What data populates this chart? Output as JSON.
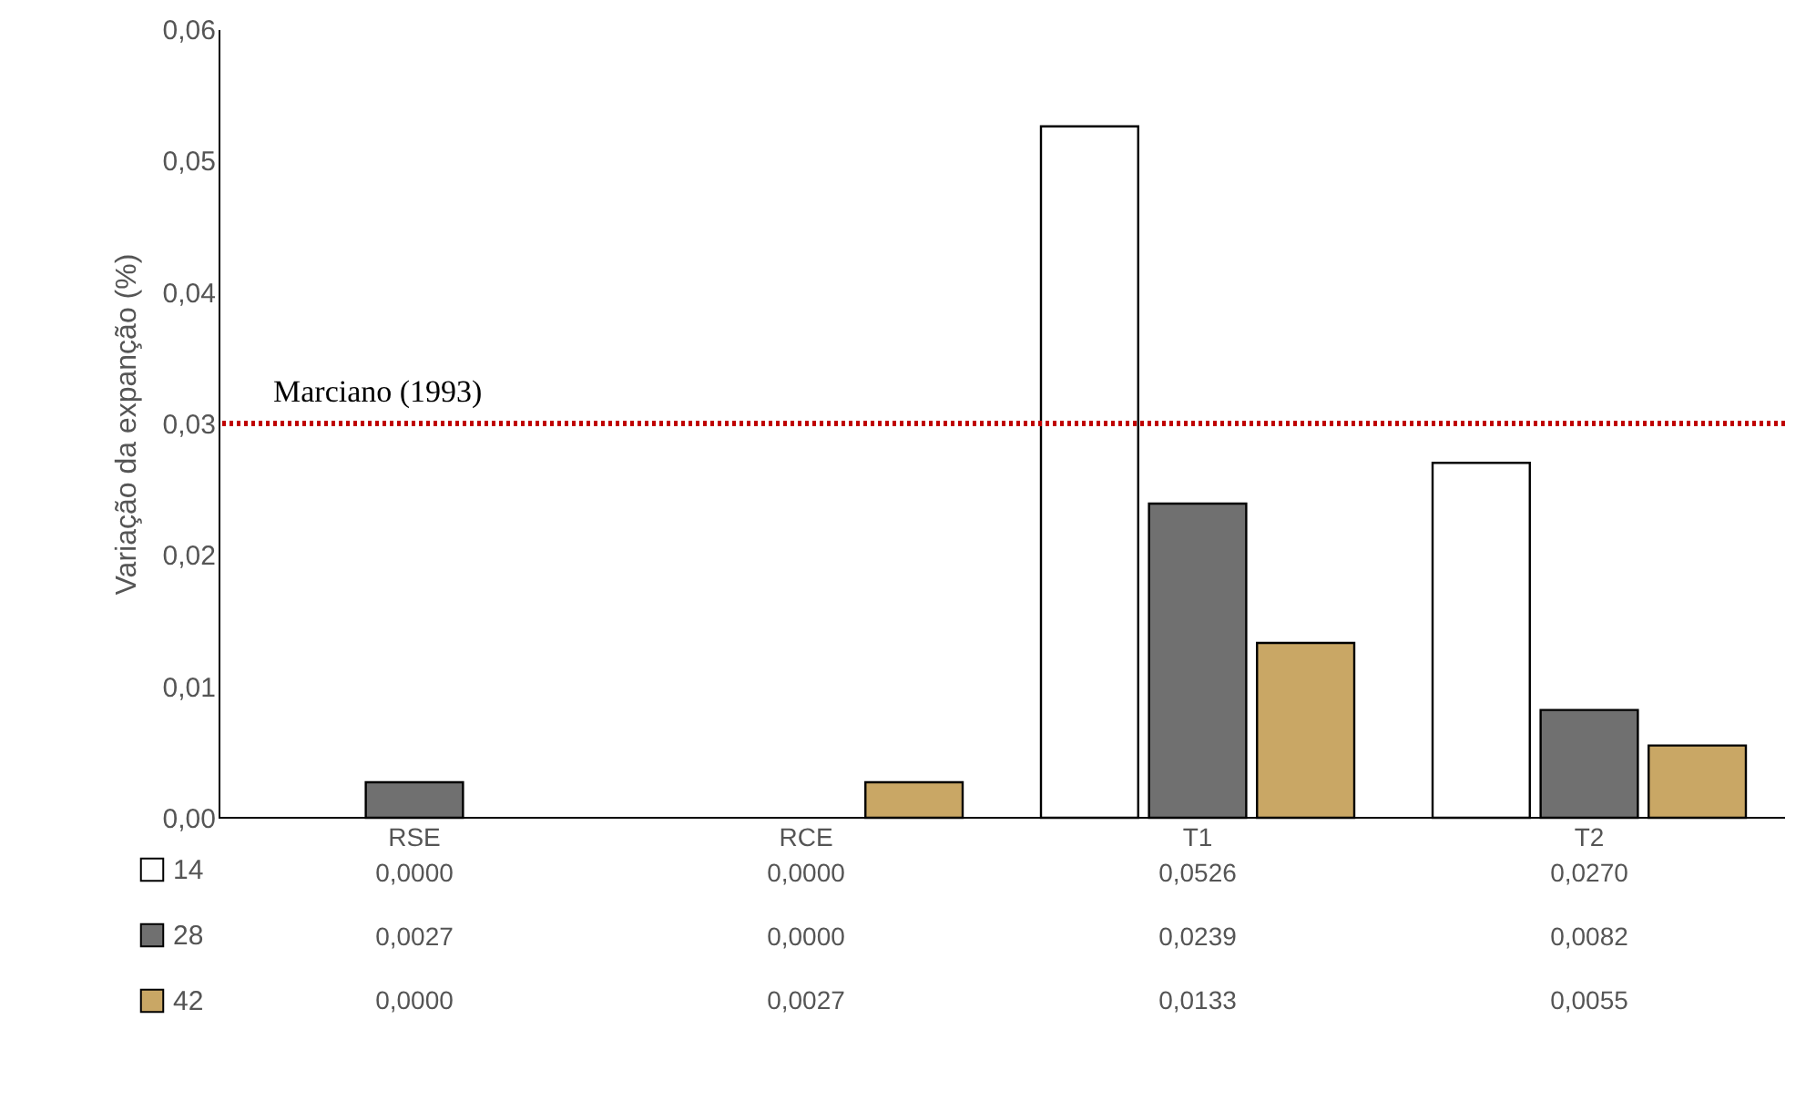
{
  "chart_data": {
    "type": "bar",
    "ylabel": "Variação da expanção (%)",
    "categories": [
      "RSE",
      "RCE",
      "T1",
      "T2"
    ],
    "series": [
      {
        "name": "14",
        "color": "#ffffff",
        "values": [
          0.0,
          0.0,
          0.0526,
          0.027
        ],
        "value_labels": [
          "0,0000",
          "0,0000",
          "0,0526",
          "0,0270"
        ]
      },
      {
        "name": "28",
        "color": "#707070",
        "values": [
          0.0027,
          0.0,
          0.0239,
          0.0082
        ],
        "value_labels": [
          "0,0027",
          "0,0000",
          "0,0239",
          "0,0082"
        ]
      },
      {
        "name": "42",
        "color": "#c9a765",
        "values": [
          0.0,
          0.0027,
          0.0133,
          0.0055
        ],
        "value_labels": [
          "0,0000",
          "0,0027",
          "0,0133",
          "0,0055"
        ]
      }
    ],
    "ylim": [
      0,
      0.06
    ],
    "yticks": [
      {
        "value": 0,
        "label": "0,00"
      },
      {
        "value": 0.01,
        "label": "0,01"
      },
      {
        "value": 0.02,
        "label": "0,02"
      },
      {
        "value": 0.03,
        "label": "0,03"
      },
      {
        "value": 0.04,
        "label": "0,04"
      },
      {
        "value": 0.05,
        "label": "0,05"
      },
      {
        "value": 0.06,
        "label": "0,06"
      }
    ],
    "ref_lines": [
      {
        "axis": "y",
        "value": 0.03,
        "label": "Marciano (1993)",
        "color": "#c00000",
        "line_style": "dotted"
      }
    ],
    "grid": false,
    "legend": "bottom left"
  }
}
